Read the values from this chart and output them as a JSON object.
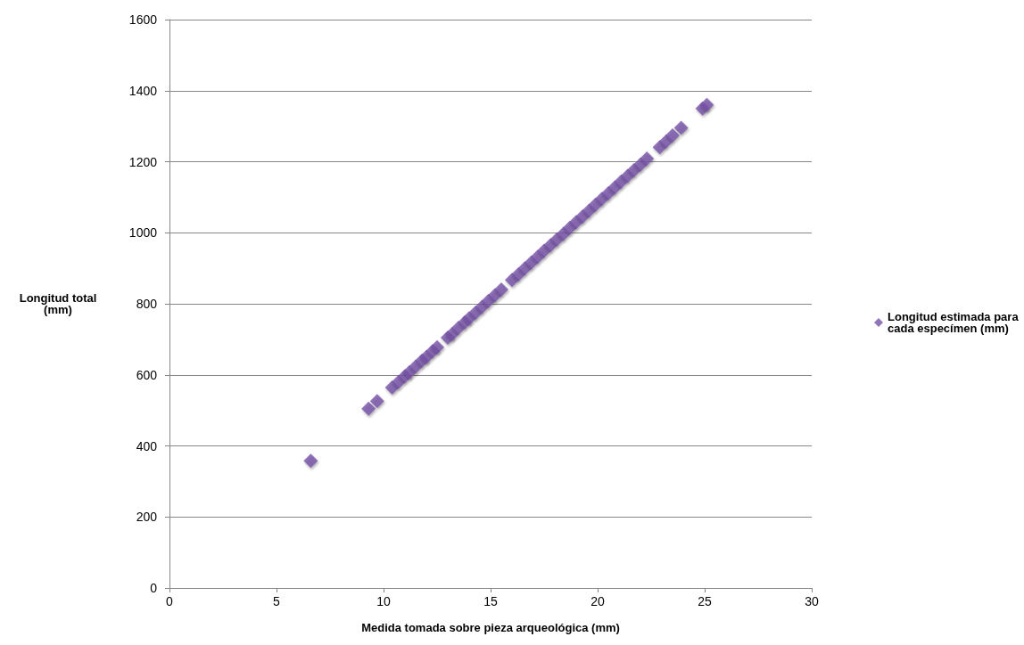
{
  "chart_data": {
    "type": "scatter",
    "xlabel": "Medida tomada sobre pieza arqueológica (mm)",
    "ylabel": "Longitud total\n(mm)",
    "xlim": [
      0,
      30
    ],
    "xticks": [
      0,
      5,
      10,
      15,
      20,
      25,
      30
    ],
    "ylim": [
      0,
      1600
    ],
    "yticks": [
      0,
      200,
      400,
      600,
      800,
      1000,
      1200,
      1400,
      1600
    ],
    "grid": "y",
    "legend": "right",
    "marker": "diamond",
    "series": [
      {
        "name": "Longitud estimada para cada especímen (mm)",
        "color": "#7652a8",
        "x": [
          6.6,
          9.3,
          9.7,
          10.4,
          10.7,
          11.0,
          11.2,
          11.5,
          11.8,
          12.0,
          12.3,
          12.5,
          13.0,
          13.2,
          13.5,
          13.8,
          14.0,
          14.3,
          14.6,
          14.9,
          15.2,
          15.5,
          16.0,
          16.3,
          16.6,
          16.9,
          17.2,
          17.5,
          17.8,
          18.1,
          18.4,
          18.7,
          19.0,
          19.3,
          19.6,
          19.9,
          20.2,
          20.5,
          20.8,
          21.1,
          21.4,
          21.7,
          22.0,
          22.3,
          22.9,
          23.2,
          23.5,
          23.9,
          24.9,
          25.1
        ],
        "values": [
          358,
          505,
          526,
          564,
          580,
          596,
          607,
          623,
          640,
          650,
          667,
          678,
          705,
          715,
          732,
          748,
          759,
          775,
          791,
          808,
          824,
          840,
          867,
          883,
          900,
          916,
          932,
          949,
          965,
          981,
          997,
          1014,
          1030,
          1046,
          1062,
          1079,
          1095,
          1111,
          1127,
          1144,
          1160,
          1176,
          1192,
          1209,
          1241,
          1257,
          1274,
          1295,
          1350,
          1360
        ]
      }
    ]
  }
}
